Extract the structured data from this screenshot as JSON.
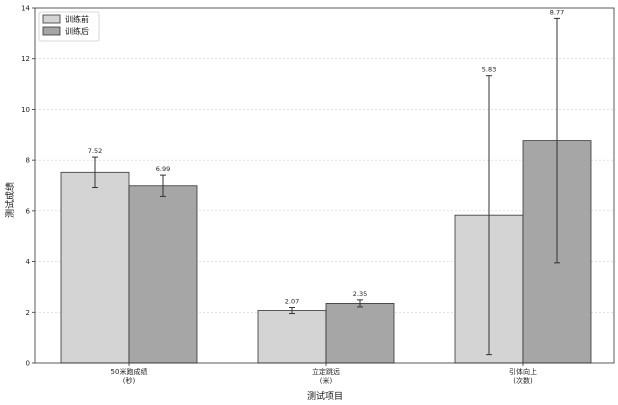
{
  "chart_data": {
    "type": "bar",
    "title": "",
    "xlabel": "测试项目",
    "ylabel": "测试成绩",
    "ylim": [
      0,
      14
    ],
    "yticks": [
      0,
      2,
      4,
      6,
      8,
      10,
      12,
      14
    ],
    "grid": "horizontal-dashed",
    "legend_position": "top-left",
    "categories": [
      [
        "50米跑成绩",
        "(秒)"
      ],
      [
        "立定跳远",
        "(米)"
      ],
      [
        "引体向上",
        "(次数)"
      ]
    ],
    "series": [
      {
        "name": "训练前",
        "color": "#d4d4d4",
        "values": [
          7.52,
          2.07,
          5.83
        ],
        "errors": [
          0.6,
          0.12,
          5.5
        ],
        "labels": [
          "7.52",
          "2.07",
          "5.83"
        ]
      },
      {
        "name": "训练后",
        "color": "#a6a6a6",
        "values": [
          6.99,
          2.35,
          8.77
        ],
        "errors": [
          0.42,
          0.14,
          4.82
        ],
        "labels": [
          "6.99",
          "2.35",
          "8.77"
        ]
      }
    ]
  }
}
